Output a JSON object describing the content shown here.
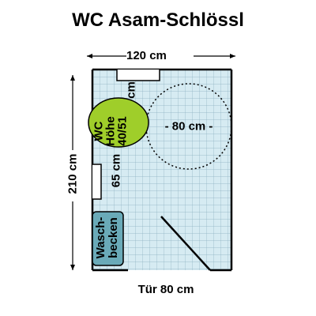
{
  "title": "WC Asam-Schlössl",
  "dimensions": {
    "width": "120 cm",
    "height": "210 cm",
    "door": "Tür 80 cm",
    "turning_circle": "- 80 cm -",
    "side_space": "65 cm",
    "top_cm": "cm"
  },
  "toilet": {
    "line1": "WC",
    "line2": "Höhe",
    "line3": "40/51"
  },
  "sink": {
    "line1": "Wasch-",
    "line2": "becken"
  },
  "colors": {
    "floor_tile": "#d6ebf2",
    "grid_line": "#8ab0c0",
    "toilet": "#9fce2a",
    "sink": "#6aaab8",
    "wall": "#000000"
  }
}
